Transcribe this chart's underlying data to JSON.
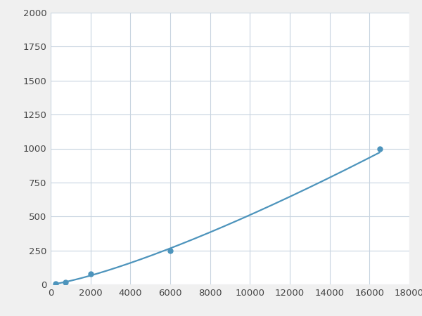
{
  "x_points": [
    250,
    750,
    2000,
    6000,
    16500
  ],
  "y_points": [
    5,
    15,
    75,
    250,
    1000
  ],
  "line_color": "#4d94bc",
  "marker_color": "#4d94bc",
  "marker_size": 5,
  "line_width": 1.6,
  "xlim": [
    0,
    18000
  ],
  "ylim": [
    0,
    2000
  ],
  "xticks": [
    0,
    2000,
    4000,
    6000,
    8000,
    10000,
    12000,
    14000,
    16000,
    18000
  ],
  "yticks": [
    0,
    250,
    500,
    750,
    1000,
    1250,
    1500,
    1750,
    2000
  ],
  "grid_color": "#c8d4e0",
  "plot_background": "#ffffff",
  "figure_background": "#f0f0f0",
  "tick_labelsize": 9.5,
  "figsize": [
    6.0,
    4.5
  ],
  "dpi": 100
}
